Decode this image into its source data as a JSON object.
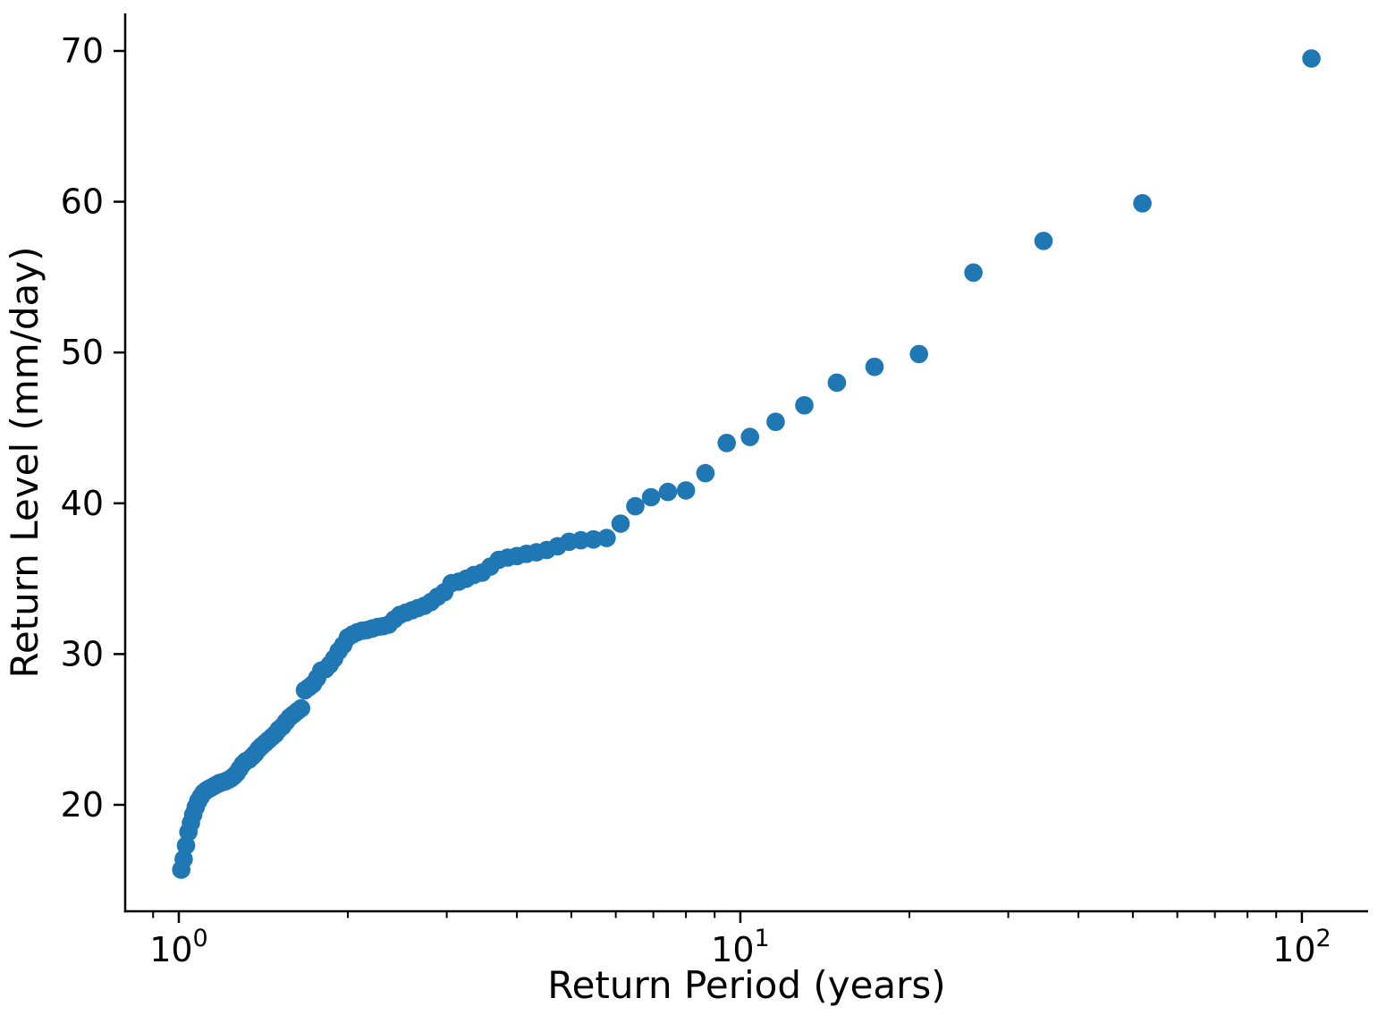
{
  "chart_data": {
    "type": "scatter",
    "title": "",
    "xlabel": "Return Period (years)",
    "ylabel": "Return Level (mm/day)",
    "x_scale": "log",
    "y_scale": "linear",
    "xlim": [
      0.8026,
      131.2
    ],
    "ylim": [
      12.94,
      72.49
    ],
    "grid": false,
    "legend": "none",
    "marker_color": "#1f77b4",
    "marker_radius": 10.3,
    "axis_color": "#000000",
    "x_major_ticks": [
      {
        "value": 1,
        "base": "10",
        "exp": "0"
      },
      {
        "value": 10,
        "base": "10",
        "exp": "1"
      },
      {
        "value": 100,
        "base": "10",
        "exp": "2"
      }
    ],
    "x_minor_ticks": [
      0.9,
      2,
      3,
      4,
      5,
      6,
      7,
      8,
      9,
      20,
      30,
      40,
      50,
      60,
      70,
      80,
      90
    ],
    "y_ticks": [
      20,
      30,
      40,
      50,
      60,
      70
    ],
    "points": {
      "return_period": [
        104,
        52,
        34.667,
        26,
        20.8,
        17.333,
        14.857,
        13,
        11.556,
        10.4,
        9.455,
        8.667,
        8,
        7.429,
        6.933,
        6.5,
        6.118,
        5.778,
        5.474,
        5.2,
        4.952,
        4.727,
        4.522,
        4.333,
        4.16,
        4,
        3.852,
        3.714,
        3.586,
        3.467,
        3.355,
        3.25,
        3.152,
        3.059,
        2.971,
        2.889,
        2.811,
        2.737,
        2.667,
        2.6,
        2.537,
        2.476,
        2.419,
        2.364,
        2.311,
        2.261,
        2.213,
        2.167,
        2.122,
        2.08,
        2.039,
        2,
        1.962,
        1.926,
        1.891,
        1.857,
        1.825,
        1.793,
        1.763,
        1.733,
        1.705,
        1.677,
        1.651,
        1.625,
        1.6,
        1.576,
        1.552,
        1.529,
        1.507,
        1.486,
        1.465,
        1.444,
        1.425,
        1.405,
        1.387,
        1.368,
        1.351,
        1.333,
        1.316,
        1.3,
        1.284,
        1.268,
        1.253,
        1.238,
        1.224,
        1.209,
        1.195,
        1.182,
        1.169,
        1.156,
        1.143,
        1.13,
        1.118,
        1.106,
        1.095,
        1.083,
        1.072,
        1.061,
        1.051,
        1.04,
        1.03,
        1.02,
        1.01
      ],
      "return_level": [
        69.5,
        59.9,
        57.4,
        55.3,
        49.9,
        49.05,
        48.0,
        46.5,
        45.4,
        44.4,
        44.0,
        42.0,
        40.85,
        40.75,
        40.4,
        39.8,
        38.65,
        37.7,
        37.6,
        37.55,
        37.45,
        37.15,
        36.9,
        36.75,
        36.65,
        36.5,
        36.4,
        36.25,
        35.8,
        35.4,
        35.25,
        35.0,
        34.8,
        34.7,
        34.1,
        33.8,
        33.45,
        33.2,
        33.05,
        32.9,
        32.75,
        32.6,
        32.3,
        31.95,
        31.85,
        31.8,
        31.7,
        31.6,
        31.55,
        31.45,
        31.3,
        31.1,
        30.6,
        30.2,
        29.7,
        29.3,
        29.0,
        28.9,
        28.4,
        28.0,
        27.8,
        27.6,
        26.4,
        26.2,
        26.0,
        25.8,
        25.5,
        25.2,
        25.0,
        24.7,
        24.5,
        24.3,
        24.1,
        23.9,
        23.7,
        23.4,
        23.2,
        23.0,
        22.9,
        22.7,
        22.4,
        22.1,
        21.9,
        21.75,
        21.65,
        21.55,
        21.5,
        21.45,
        21.35,
        21.25,
        21.15,
        21.05,
        20.95,
        20.8,
        20.55,
        20.25,
        19.85,
        19.35,
        18.8,
        18.2,
        17.3,
        16.4,
        15.7
      ]
    }
  }
}
